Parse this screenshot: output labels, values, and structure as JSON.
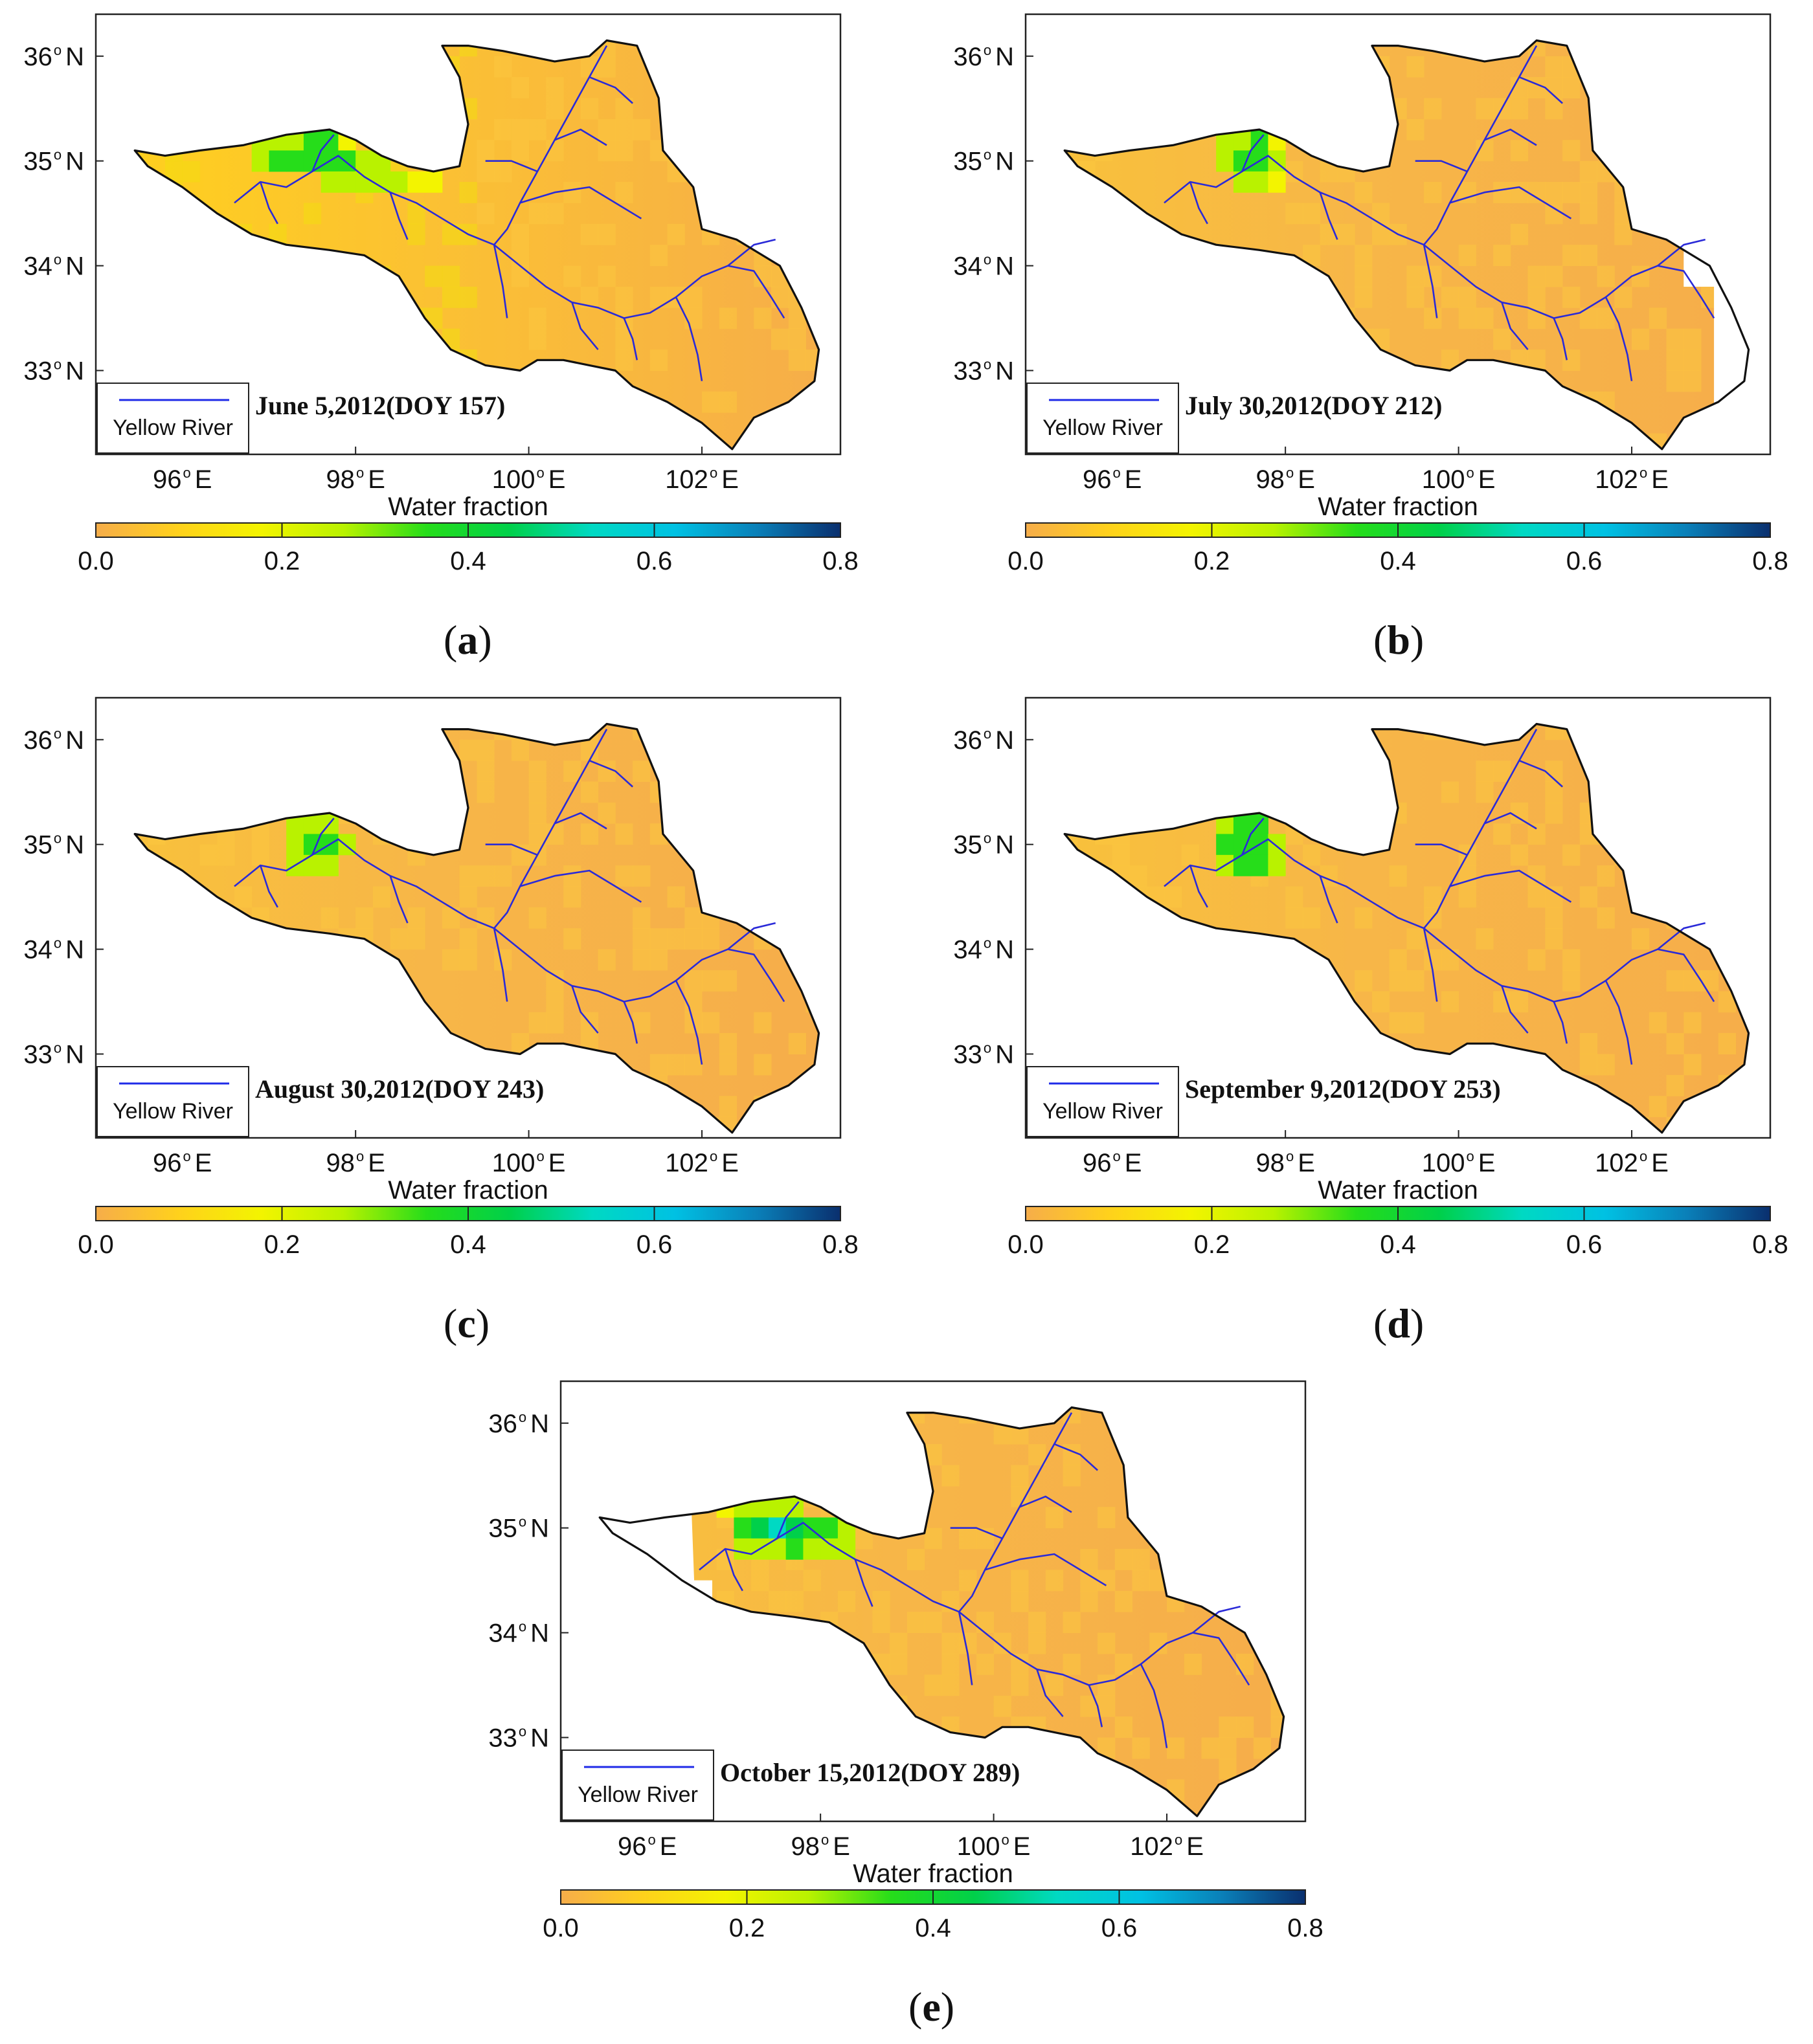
{
  "colorbar": {
    "title": "Water fraction",
    "ticks": [
      "0.0",
      "0.2",
      "0.4",
      "0.6",
      "0.8"
    ],
    "range": [
      0,
      0.8
    ],
    "colors": [
      "#f6ad4a",
      "#ffd11c",
      "#f3f400",
      "#b9f200",
      "#26dd1a",
      "#00d04a",
      "#00d9c3",
      "#00c1e3",
      "#0a7fb8",
      "#0a2f6e"
    ]
  },
  "axes": {
    "lon_ticks": [
      "96",
      "98",
      "100",
      "102"
    ],
    "lon_suffix": "E",
    "lat_ticks": [
      "36",
      "35",
      "34",
      "33"
    ],
    "lat_suffix": "N",
    "degree_symbol": "o"
  },
  "legend": {
    "label": "Yellow River",
    "line_color": "#1f2be8"
  },
  "colors": {
    "land_low": "#f6ad4a",
    "land_mid": "#ffd11c",
    "water_high": "#00d04a",
    "river": "#2a2ad8",
    "boundary": "#111111"
  },
  "panels": [
    {
      "id": "a",
      "letter": "a",
      "date": "June 5,2012(DOY 157)"
    },
    {
      "id": "b",
      "letter": "b",
      "date": "July 30,2012(DOY 212)"
    },
    {
      "id": "c",
      "letter": "c",
      "date": "August 30,2012(DOY 243)"
    },
    {
      "id": "d",
      "letter": "d",
      "date": "September 9,2012(DOY 253)"
    },
    {
      "id": "e",
      "letter": "e",
      "date": "October 15,2012(DOY 289)"
    }
  ]
}
